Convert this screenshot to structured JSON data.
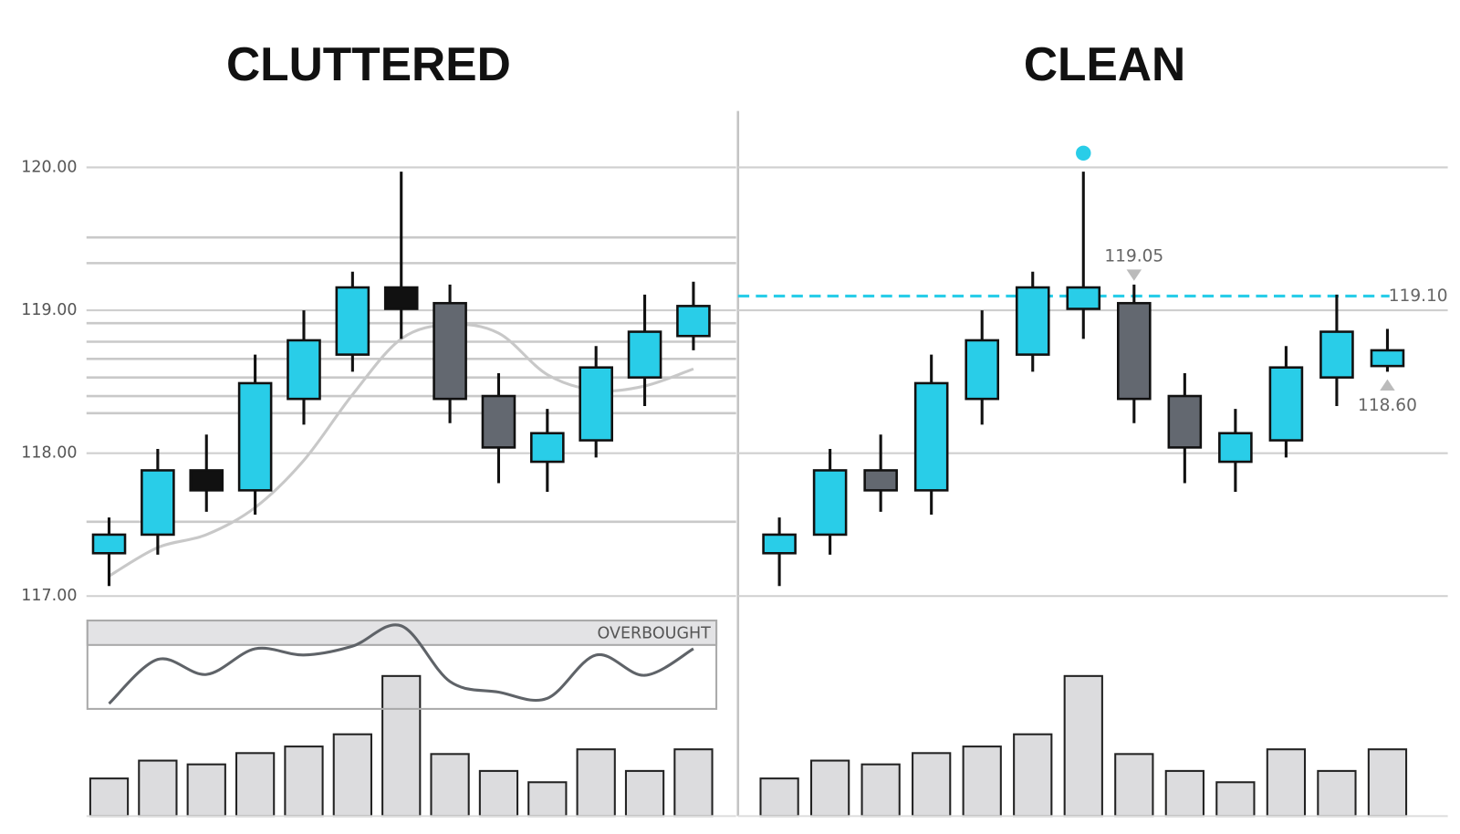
{
  "chart_data": [
    {
      "type": "candlestick",
      "title": "CLUTTERED",
      "open": [
        117.3,
        117.43,
        117.88,
        117.74,
        118.38,
        118.69,
        119.01,
        119.05,
        118.4,
        117.94,
        118.09,
        118.53,
        118.82
      ],
      "high": [
        117.55,
        118.03,
        118.13,
        118.69,
        119.0,
        119.27,
        119.97,
        119.18,
        118.56,
        118.31,
        118.75,
        119.11,
        119.2
      ],
      "low": [
        117.07,
        117.29,
        117.59,
        117.57,
        118.2,
        118.57,
        118.8,
        118.21,
        117.79,
        117.73,
        117.97,
        118.33,
        118.72
      ],
      "close": [
        117.43,
        117.88,
        117.74,
        118.49,
        118.79,
        119.16,
        119.16,
        118.38,
        118.04,
        118.14,
        118.6,
        118.85,
        119.03
      ],
      "colors": [
        "#29cde8",
        "#29cde8",
        "#111111",
        "#29cde8",
        "#29cde8",
        "#29cde8",
        "#111111",
        "#636870",
        "#636870",
        "#29cde8",
        "#29cde8",
        "#29cde8",
        "#29cde8"
      ],
      "ylim": [
        117,
        120
      ],
      "yticks": [
        {
          "value": 120,
          "label": "120.00"
        },
        {
          "value": 119,
          "label": "119.00"
        },
        {
          "value": 118,
          "label": "118.00"
        },
        {
          "value": 117,
          "label": "117.00"
        }
      ],
      "tick_labels": true,
      "grid": true,
      "levels": [
        119.51,
        119.33,
        118.91,
        118.78,
        118.66,
        118.53,
        118.4,
        118.28,
        117.52
      ],
      "moving_average": {
        "values": [
          117.14,
          117.34,
          117.43,
          117.62,
          117.95,
          118.41,
          118.8,
          118.9,
          118.84,
          118.55,
          118.44,
          118.47,
          118.59
        ],
        "color": "#c8c8c8"
      },
      "oscillator": {
        "label": "OVERBOUGHT",
        "values": [
          6,
          56,
          39,
          68,
          61,
          71,
          94,
          31,
          19,
          12,
          61,
          38,
          68
        ],
        "ylim": [
          0,
          100
        ],
        "color": "#5f6368"
      },
      "volume": {
        "values": [
          40,
          59,
          55,
          67,
          74,
          87,
          149,
          66,
          48,
          36,
          71,
          48,
          71
        ],
        "ylim": [
          0,
          160
        ],
        "color": "#dcdcde"
      }
    },
    {
      "type": "candlestick",
      "title": "CLEAN",
      "open": [
        117.3,
        117.43,
        117.88,
        117.74,
        118.38,
        118.69,
        119.01,
        119.05,
        118.4,
        117.94,
        118.09,
        118.53,
        118.61
      ],
      "high": [
        117.55,
        118.03,
        118.13,
        118.69,
        119.0,
        119.27,
        119.97,
        119.18,
        118.56,
        118.31,
        118.75,
        119.11,
        118.87
      ],
      "low": [
        117.07,
        117.29,
        117.59,
        117.57,
        118.2,
        118.57,
        118.8,
        118.21,
        117.79,
        117.73,
        117.97,
        118.33,
        118.57
      ],
      "close": [
        117.43,
        117.88,
        117.74,
        118.49,
        118.79,
        119.16,
        119.16,
        118.38,
        118.04,
        118.14,
        118.6,
        118.85,
        118.72
      ],
      "colors": [
        "#29cde8",
        "#29cde8",
        "#636870",
        "#29cde8",
        "#29cde8",
        "#29cde8",
        "#29cde8",
        "#636870",
        "#636870",
        "#29cde8",
        "#29cde8",
        "#29cde8",
        "#29cde8"
      ],
      "ylim": [
        117,
        120
      ],
      "yticks": [
        {
          "value": 120,
          "label": "120.00"
        },
        {
          "value": 119,
          "label": "119.00"
        },
        {
          "value": 118,
          "label": "118.00"
        },
        {
          "value": 117,
          "label": "117.00"
        }
      ],
      "tick_labels": false,
      "grid": true,
      "reference_line": {
        "value": 119.1,
        "label": "119.10",
        "color": "#29cde8"
      },
      "annotations": [
        {
          "value": 119.05,
          "label": "119.05",
          "index": 7,
          "direction": "down"
        },
        {
          "value": 118.6,
          "label": "118.60",
          "index": 12,
          "direction": "up"
        }
      ],
      "peak_marker": {
        "value": 120.1,
        "index": 6,
        "color": "#29cde8"
      },
      "volume": {
        "values": [
          40,
          59,
          55,
          67,
          74,
          87,
          149,
          66,
          48,
          36,
          71,
          48,
          71
        ],
        "ylim": [
          0,
          160
        ],
        "color": "#dcdcde"
      }
    }
  ]
}
